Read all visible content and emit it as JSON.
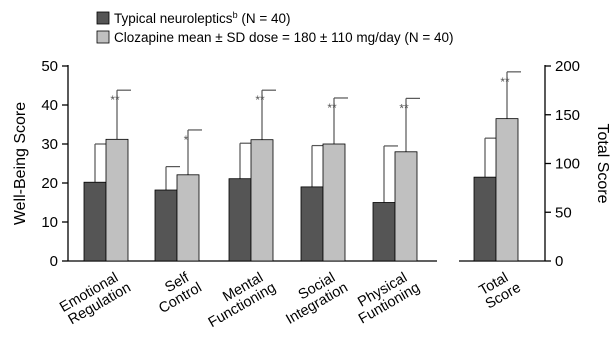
{
  "chart_data": {
    "type": "bar",
    "title": "",
    "legend": {
      "placement": "top",
      "entries": [
        {
          "label": "Typical neuroleptics",
          "sup": "b",
          "suffix": " (N = 40)",
          "color": "#555555"
        },
        {
          "label": "Clozapine mean ± SD dose = 180 ± 110 mg/day (N = 40)",
          "sup": "",
          "suffix": "",
          "color": "#c0c0c0"
        }
      ]
    },
    "left_axis": {
      "label": "Well-Being Score",
      "ylim": [
        0,
        50
      ],
      "ticks": [
        "0",
        "10",
        "20",
        "30",
        "40",
        "50"
      ]
    },
    "right_axis": {
      "label": "Total Score",
      "ylim": [
        0,
        200
      ],
      "ticks": [
        "0",
        "50",
        "100",
        "150",
        "200"
      ]
    },
    "groups": [
      {
        "lines": [
          "Emotional",
          "Regulation"
        ],
        "typical": 20.2,
        "typical_sd": 9.8,
        "clozapine": 31.2,
        "clozapine_sd": 12.6,
        "sig": "**",
        "axis": "left"
      },
      {
        "lines": [
          "Self",
          "Control"
        ],
        "typical": 18.2,
        "typical_sd": 6.0,
        "clozapine": 22.1,
        "clozapine_sd": 11.5,
        "sig": "*",
        "axis": "left"
      },
      {
        "lines": [
          "Mental",
          "Functioning"
        ],
        "typical": 21.1,
        "typical_sd": 9.1,
        "clozapine": 31.1,
        "clozapine_sd": 12.7,
        "sig": "**",
        "axis": "left"
      },
      {
        "lines": [
          "Social",
          "Integration"
        ],
        "typical": 19.0,
        "typical_sd": 10.6,
        "clozapine": 30.0,
        "clozapine_sd": 11.8,
        "sig": "**",
        "axis": "left"
      },
      {
        "lines": [
          "Physical",
          "Funtioning"
        ],
        "typical": 15.0,
        "typical_sd": 14.5,
        "clozapine": 28.0,
        "clozapine_sd": 13.7,
        "sig": "**",
        "axis": "left"
      },
      {
        "lines": [
          "Total",
          "Score"
        ],
        "typical": 86,
        "typical_sd": 40,
        "clozapine": 146,
        "clozapine_sd": 48,
        "sig": "**",
        "axis": "right"
      }
    ],
    "colors": {
      "typical": "#555555",
      "clozapine": "#c0c0c0",
      "error": "#555555",
      "axis": "#000000"
    },
    "grid": false
  }
}
